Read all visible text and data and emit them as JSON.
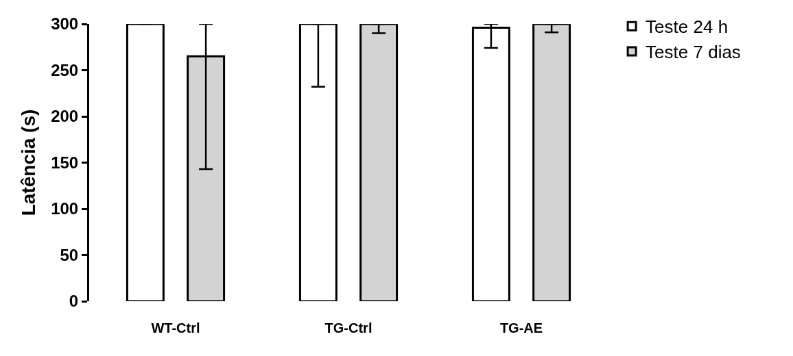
{
  "chart_data": {
    "type": "bar",
    "ylabel": "Latência (s)",
    "categories": [
      "WT-Ctrl",
      "TG-Ctrl",
      "TG-AE"
    ],
    "series": [
      {
        "name": "Teste 24 h",
        "color": "#ffffff",
        "values": [
          300,
          300,
          296
        ],
        "errors": [
          null,
          [
            232,
            300
          ],
          [
            274,
            300
          ]
        ]
      },
      {
        "name": "Teste 7 dias",
        "color": "#d3d3d3",
        "values": [
          265,
          300,
          300
        ],
        "errors": [
          [
            143,
            300
          ],
          [
            290,
            300
          ],
          [
            291,
            300
          ]
        ]
      }
    ],
    "ylim": [
      0,
      300
    ],
    "yticks": [
      0,
      50,
      100,
      150,
      200,
      250,
      300
    ],
    "legend": "top right"
  }
}
